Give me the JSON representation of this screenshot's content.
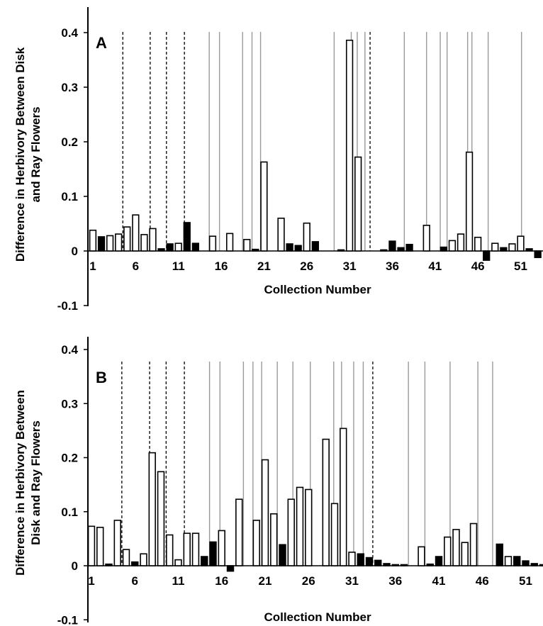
{
  "chart_data": [
    {
      "type": "bar",
      "panel_label": "A",
      "xlabel": "Collection Number",
      "ylabel_lines": [
        "Difference in Herbivory Between Disk",
        "and Ray Flowers"
      ],
      "ylim": [
        -0.1,
        0.4
      ],
      "yticks": [
        "0.4",
        "0.3",
        "0.2",
        "0.1",
        "0",
        "-0.1"
      ],
      "xticks": [
        "1",
        "6",
        "11",
        "16",
        "21",
        "26",
        "31",
        "36",
        "41",
        "46",
        "51"
      ],
      "values": [
        0.038,
        0.026,
        0.028,
        0.031,
        0.044,
        0.066,
        0.03,
        0.041,
        0.004,
        0.013,
        0.014,
        0.052,
        0.014,
        0,
        0.027,
        0,
        0.032,
        0,
        0.021,
        0.003,
        0.163,
        0,
        0.06,
        0.013,
        0.01,
        0.051,
        0.017,
        0,
        0,
        0.002,
        0.386,
        0.172,
        0,
        0,
        0.002,
        0.018,
        0.006,
        0.012,
        0,
        0.047,
        0,
        0.007,
        0.019,
        0.031,
        0.181,
        0.025,
        -0.017,
        0.014,
        0.006,
        0.013,
        0.027,
        0.004,
        -0.012
      ],
      "fill": [
        "o",
        "b",
        "o",
        "o",
        "o",
        "o",
        "o",
        "o",
        "b",
        "b",
        "o",
        "b",
        "b",
        "o",
        "o",
        "o",
        "o",
        "o",
        "o",
        "b",
        "o",
        "o",
        "o",
        "b",
        "b",
        "o",
        "b",
        "o",
        "o",
        "b",
        "o",
        "o",
        "o",
        "o",
        "b",
        "b",
        "b",
        "b",
        "o",
        "o",
        "o",
        "b",
        "o",
        "o",
        "o",
        "o",
        "b",
        "o",
        "b",
        "o",
        "o",
        "b",
        "b"
      ],
      "dashed_lines_at": [
        4.5,
        7.7,
        9.6,
        11.7,
        33.4
      ],
      "solid_lines_at": [
        14.6,
        15.8,
        18.5,
        19.6,
        20.6,
        29.2,
        31.2,
        31.9,
        32.8,
        37.4,
        40.0,
        41.6,
        42.4,
        44.8,
        45.3,
        47.2,
        51.1
      ]
    },
    {
      "type": "bar",
      "panel_label": "B",
      "xlabel": "Collection Number",
      "ylabel_lines": [
        "Difference in Herbivory Between",
        "Disk and Ray Flowers"
      ],
      "ylim": [
        -0.1,
        0.4
      ],
      "yticks": [
        "0.4",
        "0.3",
        "0.2",
        "0.1",
        "0",
        "-0.1"
      ],
      "xticks": [
        "1",
        "6",
        "11",
        "16",
        "21",
        "26",
        "31",
        "36",
        "41",
        "46",
        "51"
      ],
      "values": [
        0.073,
        0.071,
        0.003,
        0.084,
        0.03,
        0.007,
        0.022,
        0.209,
        0.174,
        0.057,
        0.011,
        0.06,
        0.06,
        0.017,
        0.044,
        0.065,
        -0.01,
        0.123,
        0,
        0.084,
        0.196,
        0.096,
        0.039,
        0.123,
        0.145,
        0.141,
        0,
        0.234,
        0.115,
        0.254,
        0.025,
        0.022,
        0.015,
        0.01,
        0.004,
        0.002,
        0.002,
        0,
        0.035,
        0.003,
        0.017,
        0.053,
        0.067,
        0.043,
        0.078,
        0,
        0,
        0.04,
        0.017,
        0.017,
        0.009,
        0.004,
        0.002
      ],
      "fill": [
        "o",
        "o",
        "b",
        "o",
        "o",
        "b",
        "o",
        "o",
        "o",
        "o",
        "o",
        "o",
        "o",
        "b",
        "b",
        "o",
        "b",
        "o",
        "o",
        "o",
        "o",
        "o",
        "b",
        "o",
        "o",
        "o",
        "o",
        "o",
        "o",
        "o",
        "o",
        "b",
        "b",
        "b",
        "b",
        "b",
        "b",
        "b",
        "o",
        "b",
        "b",
        "o",
        "o",
        "o",
        "o",
        "o",
        "o",
        "b",
        "o",
        "b",
        "b",
        "b",
        "b"
      ],
      "dashed_lines_at": [
        4.5,
        7.7,
        9.6,
        11.7,
        33.4
      ],
      "solid_lines_at": [
        14.6,
        15.8,
        18.5,
        19.6,
        20.6,
        22.4,
        24.2,
        26.2,
        28.9,
        29.8,
        31.2,
        32.3,
        37.5,
        39.4,
        42.3,
        45.5,
        47.2
      ]
    }
  ]
}
